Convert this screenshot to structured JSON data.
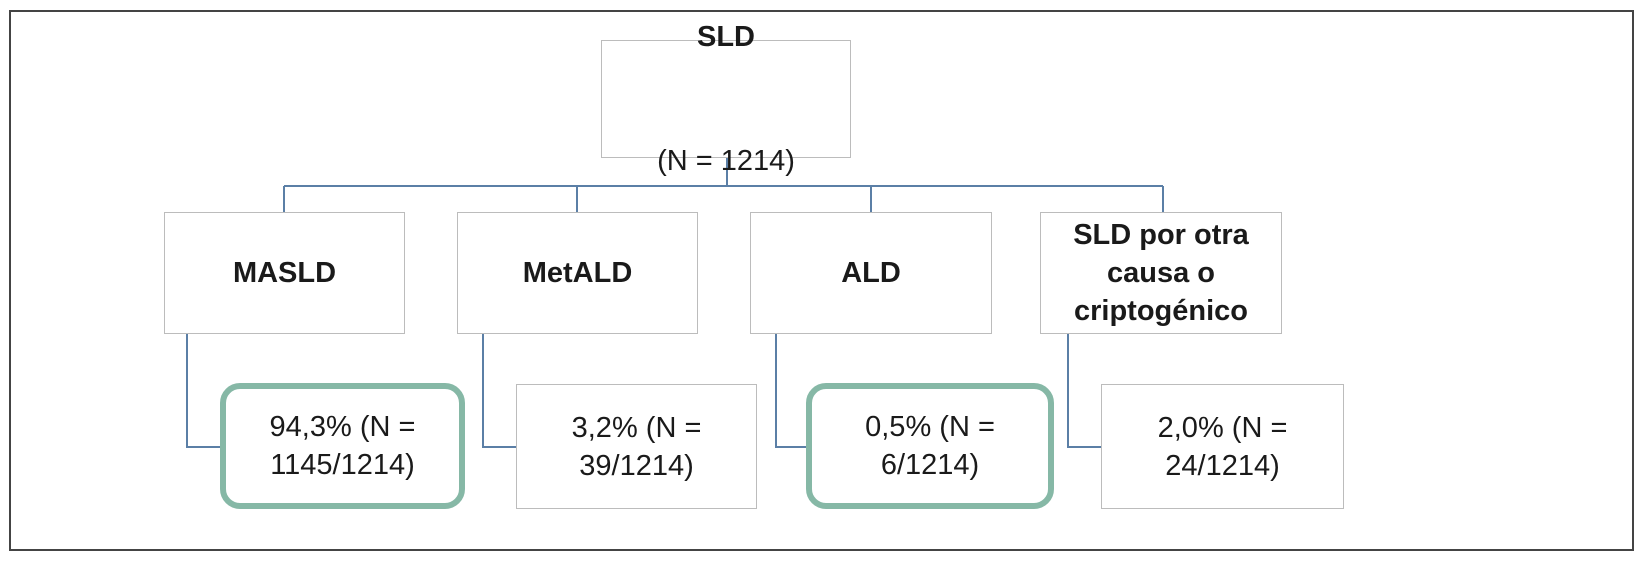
{
  "diagram": {
    "root": {
      "title": "SLD",
      "count": "(N = 1214)"
    },
    "categories": [
      {
        "label": "MASLD",
        "result": "94,3% (N =\n1145/1214)",
        "highlighted": true
      },
      {
        "label": "MetALD",
        "result": "3,2% (N =\n39/1214)",
        "highlighted": false
      },
      {
        "label": "ALD",
        "result": "0,5% (N =\n6/1214)",
        "highlighted": true
      },
      {
        "label": "SLD por otra\ncausa o\ncriptogénico",
        "result": "2,0% (N =\n24/1214)",
        "highlighted": false
      }
    ],
    "colors": {
      "connector": "#5b7fa6",
      "highlight": "#86b8a6",
      "box_border": "#bcbcbc",
      "frame": "#444444"
    }
  }
}
